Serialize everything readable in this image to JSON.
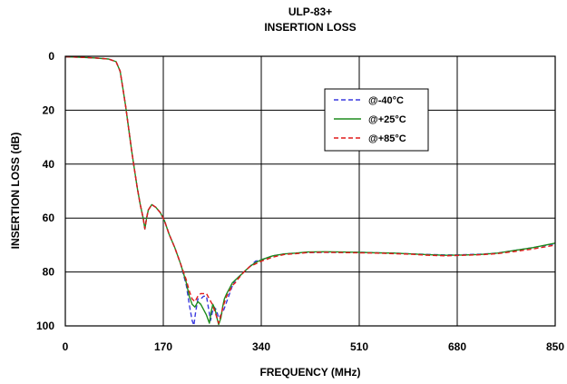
{
  "chart_data": {
    "type": "line",
    "title": "ULP-83+",
    "subtitle": "INSERTION LOSS",
    "xlabel": "FREQUENCY (MHz)",
    "ylabel": "INSERTION LOSS (dB)",
    "xlim": [
      0,
      850
    ],
    "ylim": [
      0,
      100
    ],
    "y_inverted": true,
    "x_ticks": [
      "0",
      "170",
      "340",
      "510",
      "680",
      "850"
    ],
    "y_ticks": [
      "0",
      "20",
      "40",
      "60",
      "80",
      "100"
    ],
    "grid": true,
    "legend_position": "upper-right-inside",
    "series": [
      {
        "name": "@-40°C",
        "color": "#3a3adf",
        "dash": "dashed",
        "x": [
          1,
          20,
          50,
          75,
          88,
          95,
          100,
          105,
          110,
          115,
          120,
          125,
          130,
          135,
          138,
          141,
          144,
          150,
          157,
          165,
          172,
          180,
          190,
          200,
          210,
          215,
          220,
          223,
          226,
          230,
          235,
          240,
          245,
          248,
          252,
          255,
          258,
          262,
          266,
          270,
          275,
          280,
          285,
          290,
          295,
          300,
          310,
          320,
          330,
          340,
          360,
          380,
          400,
          420,
          450,
          480,
          510,
          540,
          570,
          600,
          630,
          660,
          690,
          720,
          750,
          780,
          810,
          850
        ],
        "values": [
          0.2,
          0.3,
          0.6,
          1.0,
          2.0,
          5.5,
          12.0,
          19.0,
          27.0,
          35.0,
          42.0,
          49.0,
          55.0,
          60.0,
          64.0,
          60.0,
          57.0,
          55.0,
          56.0,
          58.0,
          61.0,
          66.0,
          71.0,
          77.0,
          85.0,
          92.0,
          98.0,
          99.8,
          95.0,
          90.0,
          90.0,
          89.0,
          89.0,
          93.0,
          98.0,
          95.0,
          93.0,
          94.0,
          97.0,
          96.0,
          94.0,
          91.0,
          88.0,
          85.0,
          83.0,
          82.0,
          80.0,
          78.0,
          76.0,
          75.5,
          74.0,
          73.3,
          73.0,
          72.8,
          72.7,
          72.7,
          72.7,
          72.9,
          73.0,
          73.3,
          73.5,
          73.7,
          73.6,
          73.4,
          73.0,
          72.0,
          71.0,
          69.5
        ]
      },
      {
        "name": "@+25°C",
        "color": "#1e8c1e",
        "dash": "solid",
        "x": [
          1,
          20,
          50,
          75,
          88,
          95,
          100,
          105,
          110,
          115,
          120,
          125,
          130,
          135,
          138,
          141,
          144,
          150,
          157,
          165,
          172,
          180,
          190,
          200,
          210,
          215,
          220,
          225,
          230,
          235,
          240,
          245,
          250,
          253,
          256,
          260,
          263,
          266,
          270,
          273,
          276,
          280,
          285,
          290,
          295,
          300,
          310,
          320,
          330,
          340,
          360,
          380,
          400,
          420,
          450,
          480,
          510,
          540,
          570,
          600,
          630,
          660,
          690,
          720,
          750,
          780,
          810,
          850
        ],
        "values": [
          0.2,
          0.3,
          0.6,
          1.0,
          2.0,
          5.5,
          12.0,
          19.0,
          27.0,
          35.0,
          42.0,
          49.0,
          55.0,
          60.0,
          64.0,
          60.0,
          57.0,
          55.0,
          56.0,
          58.0,
          61.0,
          66.0,
          71.0,
          77.0,
          84.0,
          89.0,
          92.0,
          93.0,
          91.0,
          92.0,
          94.0,
          96.0,
          99.0,
          95.0,
          92.0,
          94.0,
          97.0,
          99.5,
          97.0,
          93.0,
          90.0,
          88.0,
          86.0,
          84.0,
          83.0,
          82.0,
          80.0,
          78.0,
          76.5,
          75.5,
          74.0,
          73.3,
          73.0,
          72.6,
          72.5,
          72.6,
          72.7,
          72.9,
          73.0,
          73.3,
          73.6,
          73.8,
          73.7,
          73.5,
          73.0,
          72.0,
          71.0,
          69.3
        ]
      },
      {
        "name": "@+85°C",
        "color": "#e01a1a",
        "dash": "dashed",
        "x": [
          1,
          20,
          50,
          75,
          88,
          95,
          100,
          105,
          110,
          115,
          120,
          125,
          130,
          135,
          138,
          141,
          144,
          150,
          157,
          165,
          172,
          180,
          190,
          200,
          210,
          215,
          220,
          225,
          230,
          235,
          240,
          245,
          250,
          255,
          260,
          263,
          266,
          270,
          275,
          280,
          285,
          290,
          295,
          300,
          310,
          320,
          330,
          340,
          360,
          380,
          400,
          420,
          450,
          480,
          510,
          540,
          570,
          600,
          630,
          660,
          690,
          720,
          750,
          780,
          810,
          850
        ],
        "values": [
          0.2,
          0.3,
          0.6,
          1.0,
          2.0,
          5.5,
          12.0,
          19.0,
          27.0,
          35.0,
          42.0,
          49.0,
          55.0,
          60.0,
          64.0,
          60.0,
          57.0,
          55.0,
          56.0,
          58.0,
          61.0,
          66.0,
          71.0,
          77.0,
          83.0,
          87.0,
          90.0,
          91.0,
          89.0,
          88.0,
          88.0,
          88.0,
          90.0,
          92.0,
          95.0,
          97.0,
          99.0,
          96.0,
          92.0,
          89.0,
          87.0,
          85.0,
          84.0,
          82.5,
          80.0,
          78.0,
          77.0,
          76.0,
          74.5,
          73.5,
          73.2,
          72.8,
          72.7,
          72.8,
          72.9,
          73.0,
          73.2,
          73.4,
          73.8,
          74.0,
          73.8,
          73.6,
          73.2,
          72.4,
          71.5,
          70.0
        ]
      }
    ]
  }
}
